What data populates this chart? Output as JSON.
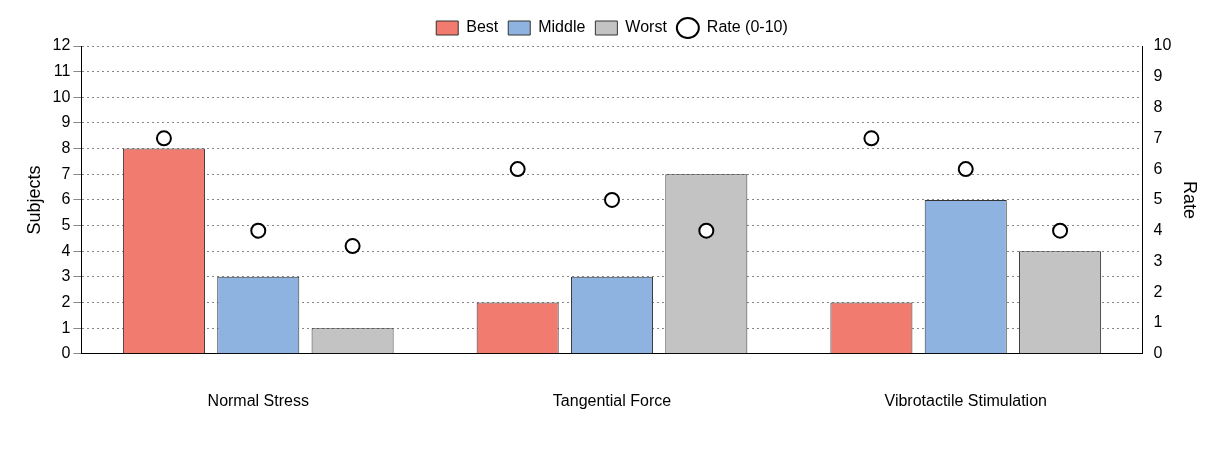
{
  "chart_data": {
    "type": "bar",
    "categories": [
      "Normal Stress",
      "Tangential Force",
      "Vibrotactile Stimulation"
    ],
    "ylabel": "Subjects",
    "y2label": "Rate",
    "ylim": [
      0,
      12
    ],
    "yticks": [
      0,
      1,
      2,
      3,
      4,
      5,
      6,
      7,
      8,
      9,
      10,
      11,
      12
    ],
    "y2lim": [
      0,
      10
    ],
    "y2ticks": [
      0,
      1,
      2,
      3,
      4,
      5,
      6,
      7,
      8,
      9,
      10
    ],
    "grid": "y",
    "legend": "top",
    "series": [
      {
        "name": "Best",
        "color": "#f07b6e",
        "values": [
          8,
          2,
          2
        ]
      },
      {
        "name": "Middle",
        "color": "#8fb3e0",
        "values": [
          3,
          3,
          6
        ]
      },
      {
        "name": "Worst",
        "color": "#c3c3c3",
        "values": [
          1,
          7,
          4
        ]
      },
      {
        "name": "Rate (0-10)",
        "type": "scatter",
        "axis": "y2",
        "marker": "circle",
        "color": "#ffffff",
        "x": [
          "Normal Stress",
          "Normal Stress",
          "Normal Stress",
          "Tangential Force",
          "Tangential Force",
          "Tangential Force",
          "Vibrotactile Stimulation",
          "Vibrotactile Stimulation",
          "Vibrotactile Stimulation"
        ],
        "values": [
          7,
          4,
          3.5,
          6,
          5,
          4,
          7,
          6,
          4
        ]
      }
    ]
  }
}
